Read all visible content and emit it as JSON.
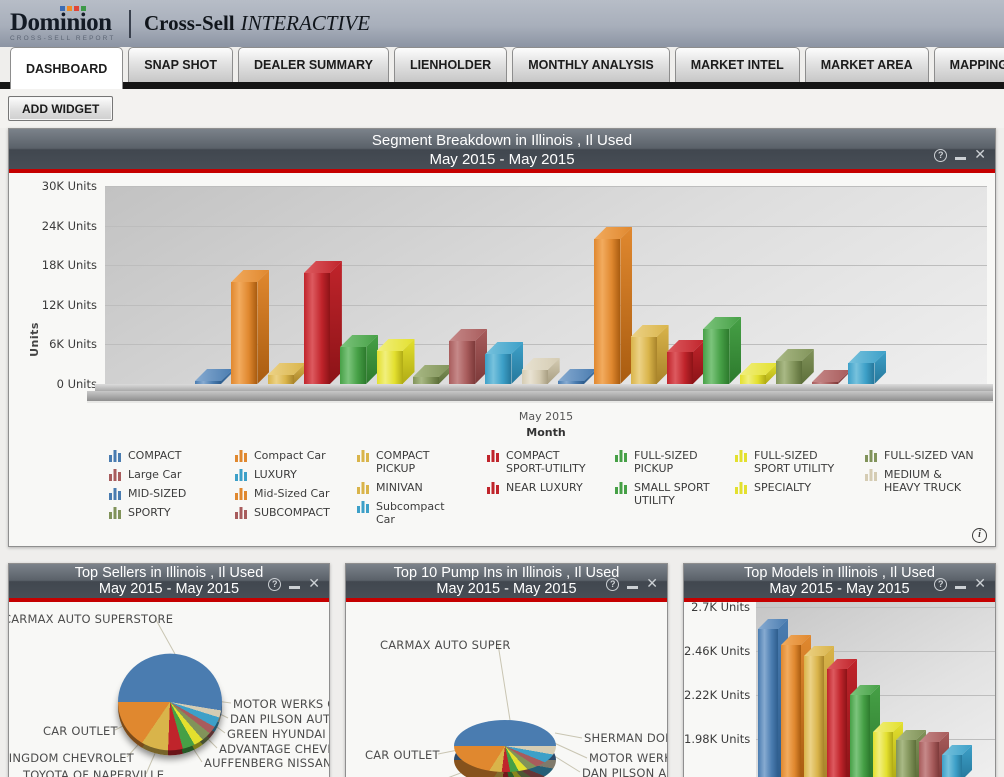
{
  "palette": {
    "blue": {
      "main": "#4a7cb0",
      "light": "#87abd1",
      "dark": "#2e5d8d"
    },
    "orange": {
      "main": "#e0882f",
      "light": "#f2ab5e",
      "dark": "#a95c10"
    },
    "gold": {
      "main": "#d9b44a",
      "light": "#ecd286",
      "dark": "#a8832a"
    },
    "red": {
      "main": "#c0242b",
      "light": "#dd5a5f",
      "dark": "#8c1317"
    },
    "green": {
      "main": "#46a046",
      "light": "#7cc47c",
      "dark": "#2d7a2d"
    },
    "yellow": {
      "main": "#e3e02e",
      "light": "#f1ef7d",
      "dark": "#b0ab15"
    },
    "olive": {
      "main": "#81935a",
      "light": "#a9b985",
      "dark": "#5d6f3a"
    },
    "maroon": {
      "main": "#a85c5c",
      "light": "#c68989",
      "dark": "#7d3a3a"
    },
    "teal": {
      "main": "#3da0c8",
      "light": "#77c2dd",
      "dark": "#26789c"
    },
    "beige": {
      "main": "#d5ccb3",
      "light": "#e8e2d2",
      "dark": "#a89e82"
    }
  },
  "accent_red": "#c50000",
  "icons": {
    "help": "?",
    "close": "✕",
    "info": "i"
  },
  "header": {
    "logo_title": "Dominion",
    "logo_subtitle": "CROSS-SELL REPORT",
    "product_name": "Cross-Sell",
    "product_suffix": "INTERACTIVE",
    "logo_square_colors": [
      "#3b6cb4",
      "#f08a24",
      "#e04438",
      "#3d9948"
    ]
  },
  "tabs": {
    "active": "DASHBOARD",
    "items": [
      "DASHBOARD",
      "SNAP SHOT",
      "DEALER SUMMARY",
      "LIENHOLDER",
      "MONTHLY ANALYSIS",
      "MARKET INTEL",
      "MARKET AREA",
      "MAPPING ANALYSIS"
    ]
  },
  "toolbar": {
    "add_widget_label": "ADD WIDGET"
  },
  "segment_widget": {
    "title": [
      "Segment Breakdown in Illinois , Il Used",
      "May 2015 - May 2015"
    ],
    "y_axis": {
      "title": "Units",
      "ticks": [
        "30K Units",
        "24K Units",
        "18K Units",
        "12K Units",
        "6K Units",
        "0 Units"
      ]
    },
    "x_axis": {
      "title": "Month",
      "tick": "May 2015"
    },
    "chart_data": {
      "type": "bar",
      "x_categories": [
        "May 2015"
      ],
      "ylim": [
        0,
        30000
      ],
      "series": [
        {
          "name": "COMPACT",
          "color": "blue",
          "value": 400
        },
        {
          "name": "Compact Car",
          "color": "orange",
          "value": 15500
        },
        {
          "name": "COMPACT PICKUP",
          "color": "gold",
          "value": 1300
        },
        {
          "name": "COMPACT SPORT-UTILITY",
          "color": "red",
          "value": 16800
        },
        {
          "name": "FULL-SIZED PICKUP",
          "color": "green",
          "value": 5600
        },
        {
          "name": "FULL-SIZED SPORT UTILITY",
          "color": "yellow",
          "value": 5000
        },
        {
          "name": "FULL-SIZED VAN",
          "color": "olive",
          "value": 1100
        },
        {
          "name": "Large Car",
          "color": "maroon",
          "value": 6500
        },
        {
          "name": "LUXURY",
          "color": "teal",
          "value": 4600
        },
        {
          "name": "MEDIUM & HEAVY TRUCK",
          "color": "beige",
          "value": 2100
        },
        {
          "name": "MID-SIZED",
          "color": "blue",
          "value": 500
        },
        {
          "name": "Mid-Sized Car",
          "color": "orange",
          "value": 22000
        },
        {
          "name": "MINIVAN",
          "color": "gold",
          "value": 7100
        },
        {
          "name": "NEAR LUXURY",
          "color": "red",
          "value": 4800
        },
        {
          "name": "SMALL SPORT UTILITY",
          "color": "green",
          "value": 8300
        },
        {
          "name": "SPECIALTY",
          "color": "yellow",
          "value": 1300
        },
        {
          "name": "SPORTY",
          "color": "olive",
          "value": 3500
        },
        {
          "name": "SUBCOMPACT",
          "color": "maroon",
          "value": 300
        },
        {
          "name": "Subcompact Car",
          "color": "teal",
          "value": 3200
        }
      ]
    },
    "legend_columns": [
      [
        {
          "label": "COMPACT",
          "color": "blue"
        },
        {
          "label": "Large Car",
          "color": "maroon"
        },
        {
          "label": "MID-SIZED",
          "color": "blue"
        },
        {
          "label": "SPORTY",
          "color": "olive"
        }
      ],
      [
        {
          "label": "Compact Car",
          "color": "orange"
        },
        {
          "label": "LUXURY",
          "color": "teal"
        },
        {
          "label": "Mid-Sized Car",
          "color": "orange"
        },
        {
          "label": "SUBCOMPACT",
          "color": "maroon"
        }
      ],
      [
        {
          "label": "COMPACT PICKUP",
          "color": "gold"
        },
        {
          "label": "MINIVAN",
          "color": "gold"
        },
        {
          "label": "Subcompact Car",
          "color": "teal"
        }
      ],
      [
        {
          "label": "COMPACT SPORT-UTILITY",
          "color": "red"
        },
        {
          "label": "NEAR LUXURY",
          "color": "red"
        }
      ],
      [
        {
          "label": "FULL-SIZED PICKUP",
          "color": "green"
        },
        {
          "label": "SMALL SPORT UTILITY",
          "color": "green"
        }
      ],
      [
        {
          "label": "FULL-SIZED SPORT UTILITY",
          "color": "yellow"
        },
        {
          "label": "SPECIALTY",
          "color": "yellow"
        }
      ],
      [
        {
          "label": "FULL-SIZED VAN",
          "color": "olive"
        },
        {
          "label": "MEDIUM & HEAVY TRUCK",
          "color": "beige"
        }
      ]
    ]
  },
  "top_sellers_widget": {
    "title": [
      "Top Sellers in Illinois , Il Used",
      "May 2015 - May 2015"
    ],
    "chart_data": {
      "type": "pie",
      "slices": [
        {
          "label": "CARMAX AUTO SUPERSTORE",
          "color": "blue",
          "share": 52.8
        },
        {
          "label": "",
          "color": "beige",
          "share": 2.4
        },
        {
          "label": "MOTOR WERKS O",
          "color": "teal",
          "share": 3.4
        },
        {
          "label": "DAN PILSON AUT",
          "color": "maroon",
          "share": 2.6
        },
        {
          "label": "GREEN HYUNDAI L",
          "color": "olive",
          "share": 3.0
        },
        {
          "label": "ADVANTAGE CHEVR",
          "color": "yellow",
          "share": 3.0
        },
        {
          "label": "AUFFENBERG NISSAN",
          "color": "green",
          "share": 3.8
        },
        {
          "label": "TOYOTA OF NAPERVILLE",
          "color": "red",
          "share": 4.6
        },
        {
          "label": "KINGDOM CHEVROLET",
          "color": "gold",
          "share": 8.4
        },
        {
          "label": "CAR OUTLET",
          "color": "orange",
          "share": 16.0
        }
      ]
    }
  },
  "pump_ins_widget": {
    "title": [
      "Top 10 Pump Ins in Illinois , Il Used",
      "May 2015 - May 2015"
    ],
    "chart_data": {
      "type": "pie",
      "slices": [
        {
          "label": "CARMAX AUTO SUPER",
          "color": "blue",
          "share": 50.0
        },
        {
          "label": "SHERMAN DOD",
          "color": "beige",
          "share": 2.8
        },
        {
          "label": "MOTOR WERKS",
          "color": "teal",
          "share": 3.4
        },
        {
          "label": "DAN PILSON AU",
          "color": "maroon",
          "share": 3.0
        },
        {
          "label": "",
          "color": "olive",
          "share": 3.6
        },
        {
          "label": "",
          "color": "yellow",
          "share": 4.2
        },
        {
          "label": "",
          "color": "green",
          "share": 4.8
        },
        {
          "label": "",
          "color": "red",
          "share": 5.2
        },
        {
          "label": "",
          "color": "gold",
          "share": 7.0
        },
        {
          "label": "CAR OUTLET",
          "color": "orange",
          "share": 16.0
        }
      ]
    }
  },
  "top_models_widget": {
    "title": [
      "Top Models in Illinois , Il Used",
      "May 2015 - May 2015"
    ],
    "y_ticks": [
      "2.7K Units",
      "2.46K Units",
      "2.22K Units",
      "1.98K Units"
    ],
    "chart_data": {
      "type": "bar",
      "values": [
        2580,
        2490,
        2430,
        2360,
        2220,
        2020,
        1975,
        1965,
        1890
      ],
      "colors": [
        "blue",
        "orange",
        "gold",
        "red",
        "green",
        "yellow",
        "olive",
        "maroon",
        "teal"
      ],
      "y_tick_values": [
        2700,
        2460,
        2220,
        1980
      ]
    }
  }
}
